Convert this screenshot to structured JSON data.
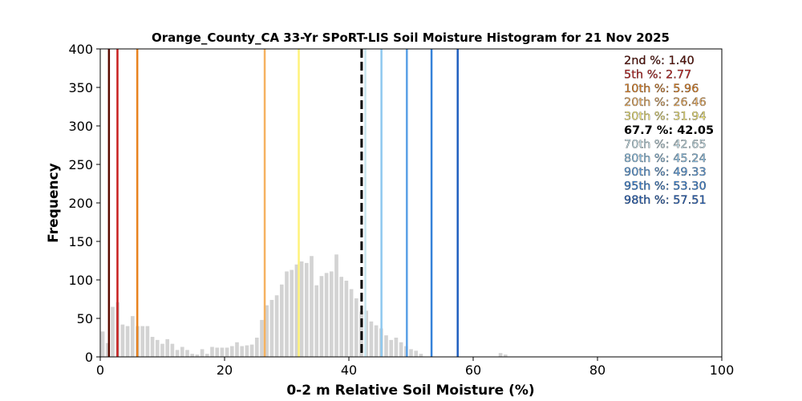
{
  "chart_data": {
    "type": "bar",
    "title": "Orange_County_CA 33-Yr SPoRT-LIS Soil Moisture Histogram for 21 Nov 2025",
    "xlabel": "0-2 m Relative Soil Moisture (%)",
    "ylabel": "Frequency",
    "xlim": [
      0,
      100
    ],
    "ylim": [
      0,
      400
    ],
    "xticks": [
      "0",
      "20",
      "40",
      "60",
      "80",
      "100"
    ],
    "yticks": [
      "0",
      "50",
      "100",
      "150",
      "200",
      "250",
      "300",
      "350",
      "400"
    ],
    "bar_color": "#d3d3d3",
    "bins": [
      0.4,
      1.2,
      2.0,
      2.8,
      3.6,
      4.4,
      5.2,
      6.0,
      6.8,
      7.6,
      8.4,
      9.2,
      10.0,
      10.8,
      11.6,
      12.4,
      13.2,
      14.0,
      14.8,
      15.6,
      16.4,
      17.2,
      18.0,
      18.8,
      19.6,
      20.4,
      21.2,
      22.0,
      22.8,
      23.6,
      24.4,
      25.2,
      26.0,
      26.8,
      27.6,
      28.4,
      29.2,
      30.0,
      30.8,
      31.6,
      32.4,
      33.2,
      34.0,
      34.8,
      35.6,
      36.4,
      37.2,
      38.0,
      38.8,
      39.6,
      40.4,
      41.2,
      42.0,
      42.8,
      43.6,
      44.4,
      45.2,
      46.0,
      46.8,
      47.6,
      48.4,
      49.2,
      50.0,
      50.8,
      51.6,
      52.4,
      53.2,
      54.0,
      54.8,
      55.6,
      56.4,
      57.2,
      58.0,
      58.8,
      59.6,
      60.4,
      61.2,
      62.0,
      62.8,
      63.6,
      64.4,
      65.2
    ],
    "values": [
      33,
      18,
      65,
      71,
      42,
      40,
      53,
      40,
      40,
      40,
      26,
      22,
      17,
      23,
      17,
      9,
      13,
      9,
      4,
      3,
      10,
      4,
      13,
      12,
      12,
      12,
      14,
      19,
      14,
      15,
      16,
      25,
      48,
      67,
      74,
      80,
      94,
      111,
      113,
      120,
      124,
      122,
      131,
      93,
      105,
      109,
      111,
      133,
      104,
      99,
      88,
      76,
      59,
      60,
      46,
      41,
      37,
      28,
      22,
      25,
      19,
      14,
      10,
      8,
      4,
      0,
      0,
      0,
      0,
      0,
      0,
      0,
      0,
      0,
      0,
      0,
      0,
      0,
      0,
      0,
      5,
      3
    ],
    "bin_width": 0.6,
    "percentile_lines": [
      {
        "label": "2nd %: 1.40",
        "x": 1.4,
        "color": "#5b0a00",
        "dashed": false
      },
      {
        "label": "5th %: 2.77",
        "x": 2.77,
        "color": "#c81e1e",
        "dashed": false
      },
      {
        "label": "10th %: 5.96",
        "x": 5.96,
        "color": "#e8821e",
        "dashed": false
      },
      {
        "label": "20th %: 26.46",
        "x": 26.46,
        "color": "#f5b260",
        "dashed": false
      },
      {
        "label": "30th %: 31.94",
        "x": 31.94,
        "color": "#fff27a",
        "dashed": false
      },
      {
        "label": "67.7 %: 42.05",
        "x": 42.05,
        "color": "#000000",
        "dashed": true
      },
      {
        "label": "70th %: 42.65",
        "x": 42.65,
        "color": "#c8e6f0",
        "dashed": false
      },
      {
        "label": "80th %: 45.24",
        "x": 45.24,
        "color": "#8ec8ef",
        "dashed": false
      },
      {
        "label": "90th %: 49.33",
        "x": 49.33,
        "color": "#5aa0e6",
        "dashed": false
      },
      {
        "label": "95th %: 53.30",
        "x": 53.3,
        "color": "#3582d9",
        "dashed": false
      },
      {
        "label": "98th %: 57.51",
        "x": 57.51,
        "color": "#1f5fbf",
        "dashed": false
      }
    ],
    "legend_placement": "top-right",
    "grid": false
  }
}
